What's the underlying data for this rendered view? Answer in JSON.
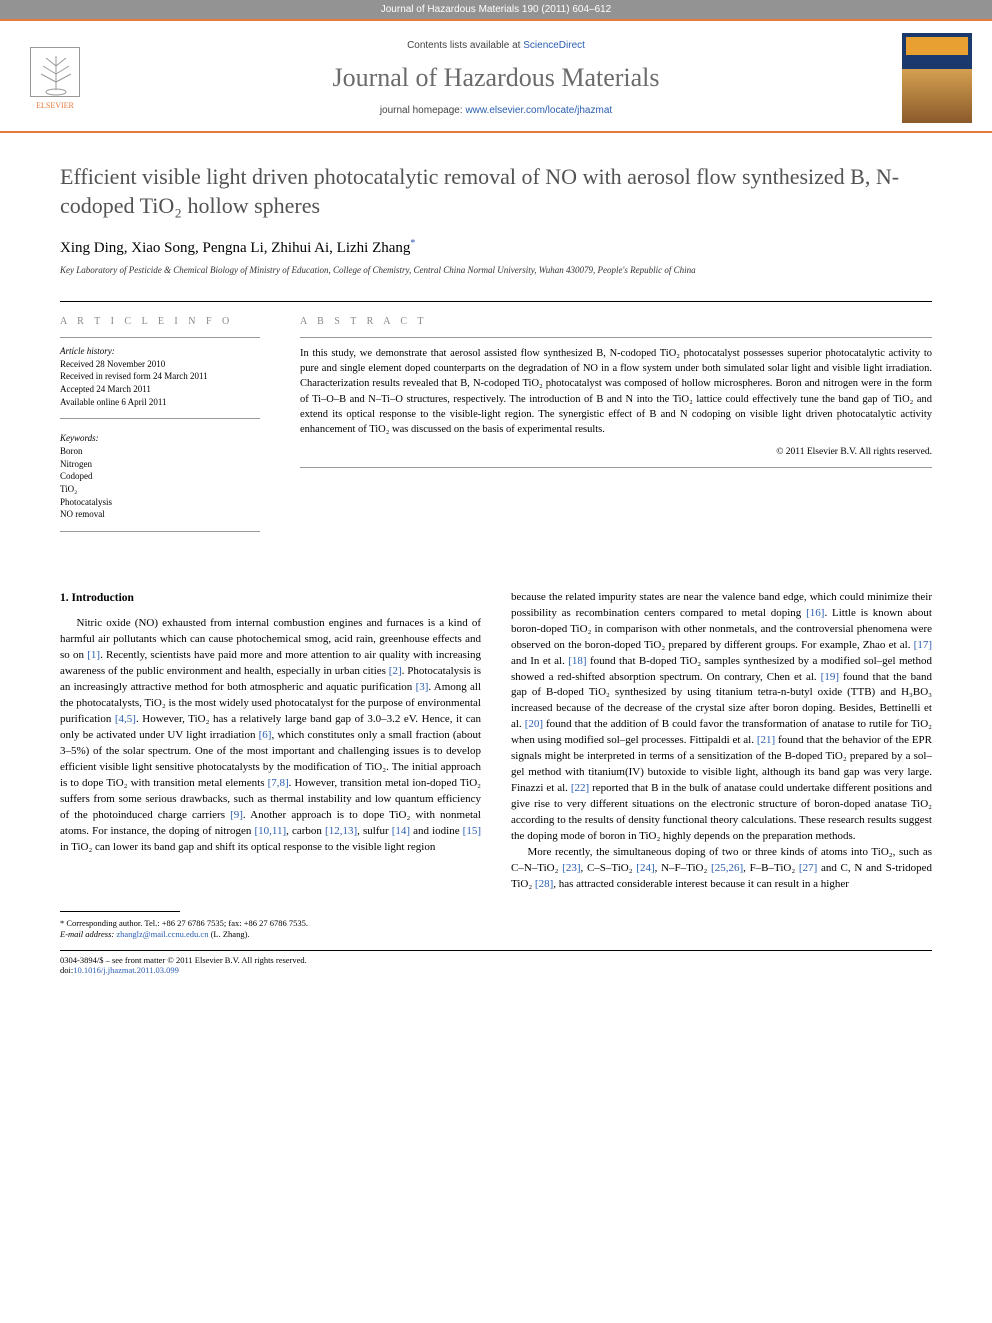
{
  "header": {
    "citation": "Journal of Hazardous Materials 190 (2011) 604–612",
    "contents_prefix": "Contents lists available at ",
    "contents_link": "ScienceDirect",
    "journal_name": "Journal of Hazardous Materials",
    "homepage_prefix": "journal homepage: ",
    "homepage_url": "www.elsevier.com/locate/jhazmat",
    "publisher": "ELSEVIER"
  },
  "title": "Efficient visible light driven photocatalytic removal of NO with aerosol flow synthesized B, N-codoped TiO₂ hollow spheres",
  "authors_line": "Xing Ding, Xiao Song, Pengna Li, Zhihui Ai, Lizhi Zhang",
  "corr_mark": "*",
  "affiliation": "Key Laboratory of Pesticide & Chemical Biology of Ministry of Education, College of Chemistry, Central China Normal University, Wuhan 430079, People's Republic of China",
  "article_info": {
    "head": "A R T I C L E  I N F O",
    "history_head": "Article history:",
    "received": "Received 28 November 2010",
    "revised": "Received in revised form 24 March 2011",
    "accepted": "Accepted 24 March 2011",
    "online": "Available online 6 April 2011",
    "keywords_head": "Keywords:",
    "keywords": [
      "Boron",
      "Nitrogen",
      "Codoped",
      "TiO₂",
      "Photocatalysis",
      "NO removal"
    ]
  },
  "abstract": {
    "head": "A B S T R A C T",
    "text": "In this study, we demonstrate that aerosol assisted flow synthesized B, N-codoped TiO₂ photocatalyst possesses superior photocatalytic activity to pure and single element doped counterparts on the degradation of NO in a flow system under both simulated solar light and visible light irradiation. Characterization results revealed that B, N-codoped TiO₂ photocatalyst was composed of hollow microspheres. Boron and nitrogen were in the form of Ti–O–B and N–Ti–O structures, respectively. The introduction of B and N into the TiO₂ lattice could effectively tune the band gap of TiO₂ and extend its optical response to the visible-light region. The synergistic effect of B and N codoping on visible light driven photocatalytic activity enhancement of TiO₂ was discussed on the basis of experimental results.",
    "copyright": "© 2011 Elsevier B.V. All rights reserved."
  },
  "body": {
    "section_head": "1. Introduction",
    "col1_p1": "Nitric oxide (NO) exhausted from internal combustion engines and furnaces is a kind of harmful air pollutants which can cause photochemical smog, acid rain, greenhouse effects and so on [1]. Recently, scientists have paid more and more attention to air quality with increasing awareness of the public environment and health, especially in urban cities [2]. Photocatalysis is an increasingly attractive method for both atmospheric and aquatic purification [3]. Among all the photocatalysts, TiO₂ is the most widely used photocatalyst for the purpose of environmental purification [4,5]. However, TiO₂ has a relatively large band gap of 3.0–3.2 eV. Hence, it can only be activated under UV light irradiation [6], which constitutes only a small fraction (about 3–5%) of the solar spectrum. One of the most important and challenging issues is to develop efficient visible light sensitive photocatalysts by the modification of TiO₂. The initial approach is to dope TiO₂ with transition metal elements [7,8]. However, transition metal ion-doped TiO₂ suffers from some serious drawbacks, such as thermal instability and low quantum efficiency of the photoinduced charge carriers [9]. Another approach is to dope TiO₂ with nonmetal atoms. For instance, the doping of nitrogen [10,11], carbon [12,13], sulfur [14] and iodine [15] in TiO₂ can lower its band gap and shift its optical response to the visible light region",
    "col2_p1": "because the related impurity states are near the valence band edge, which could minimize their possibility as recombination centers compared to metal doping [16]. Little is known about boron-doped TiO₂ in comparison with other nonmetals, and the controversial phenomena were observed on the boron-doped TiO₂ prepared by different groups. For example, Zhao et al. [17] and In et al. [18] found that B-doped TiO₂ samples synthesized by a modified sol–gel method showed a red-shifted absorption spectrum. On contrary, Chen et al. [19] found that the band gap of B-doped TiO₂ synthesized by using titanium tetra-n-butyl oxide (TTB) and H₃BO₃ increased because of the decrease of the crystal size after boron doping. Besides, Bettinelli et al. [20] found that the addition of B could favor the transformation of anatase to rutile for TiO₂ when using modified sol–gel processes. Fittipaldi et al. [21] found that the behavior of the EPR signals might be interpreted in terms of a sensitization of the B-doped TiO₂ prepared by a sol–gel method with titanium(IV) butoxide to visible light, although its band gap was very large. Finazzi et al. [22] reported that B in the bulk of anatase could undertake different positions and give rise to very different situations on the electronic structure of boron-doped anatase TiO₂ according to the results of density functional theory calculations. These research results suggest the doping mode of boron in TiO₂ highly depends on the preparation methods.",
    "col2_p2": "More recently, the simultaneous doping of two or three kinds of atoms into TiO₂, such as C–N–TiO₂ [23], C–S–TiO₂ [24], N–F–TiO₂ [25,26], F–B–TiO₂ [27] and C, N and S-tridoped TiO₂ [28], has attracted considerable interest because it can result in a higher"
  },
  "footnote": {
    "corr": "* Corresponding author. Tel.: +86 27 6786 7535; fax: +86 27 6786 7535.",
    "email_label": "E-mail address: ",
    "email": "zhanglz@mail.ccnu.edu.cn",
    "email_name": " (L. Zhang)."
  },
  "footer": {
    "left_line1": "0304-3894/$ – see front matter © 2011 Elsevier B.V. All rights reserved.",
    "left_line2_prefix": "doi:",
    "doi": "10.1016/j.jhazmat.2011.03.099"
  },
  "colors": {
    "orange": "#e87a3c",
    "grey_bar": "#939393",
    "link": "#2a5db0",
    "title_grey": "#525252"
  }
}
